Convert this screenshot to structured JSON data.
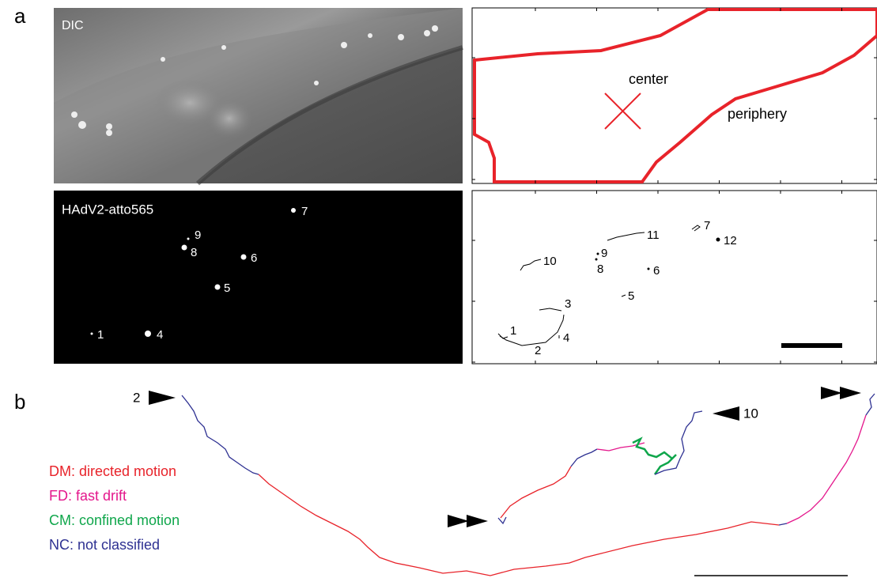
{
  "panel_labels": [
    "a",
    "b"
  ],
  "dic": {
    "label": "DIC"
  },
  "outline": {
    "center": "center",
    "periphery": "periphery"
  },
  "fluorescence": {
    "label": "HAdV2-atto565",
    "spots": [
      "1",
      "4",
      "5",
      "6",
      "7",
      "8",
      "9"
    ]
  },
  "tracks": {
    "labels": [
      "1",
      "2",
      "3",
      "4",
      "5",
      "6",
      "7",
      "8",
      "9",
      "10",
      "11",
      "12"
    ]
  },
  "trajectory": {
    "start": "2",
    "end": "10",
    "legend": [
      "DM: directed motion",
      "FD: fast drift",
      "CM: confined motion",
      "NC: not classified"
    ]
  }
}
